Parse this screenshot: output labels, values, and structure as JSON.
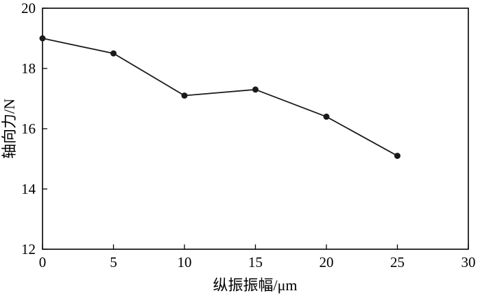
{
  "chart_data": {
    "type": "line",
    "x": [
      0,
      5,
      10,
      15,
      20,
      25
    ],
    "series": [
      {
        "name": "axial-force",
        "values": [
          19.0,
          18.5,
          17.1,
          17.3,
          16.4,
          15.1
        ]
      }
    ],
    "title": "",
    "xlabel": "纵振振幅/μm",
    "ylabel": "轴向力/N",
    "xlim": [
      0,
      30
    ],
    "ylim": [
      12,
      20
    ],
    "xticks": [
      0,
      5,
      10,
      15,
      20,
      25,
      30
    ],
    "yticks": [
      12,
      14,
      16,
      18,
      20
    ],
    "grid": false,
    "legend": "none",
    "line_color": "#1a1a1a",
    "marker": "filled-circle",
    "marker_size": 4.5
  }
}
